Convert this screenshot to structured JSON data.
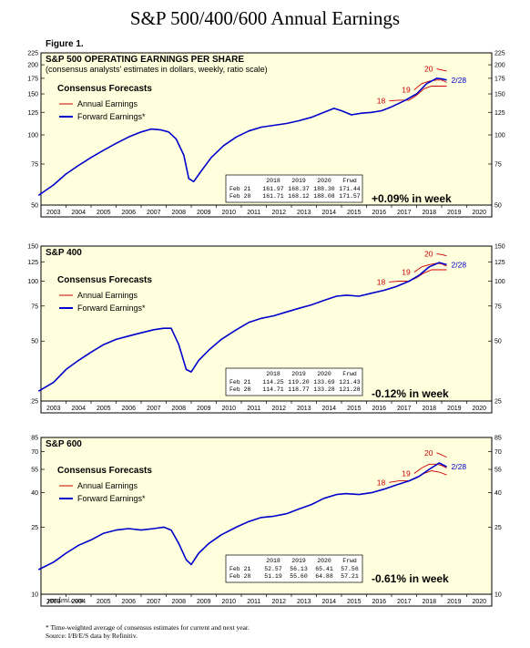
{
  "title": "S&P 500/400/600 Annual Earnings",
  "figure_label": "Figure 1.",
  "footnote": [
    "* Time-weighted average of consensus estimates for current and next year.",
    "Source: I/B/E/S data by Refinitiv."
  ],
  "credit": "yardeni.com",
  "colors": {
    "annual": "#cc0000",
    "forward": "#0000cc",
    "panel_bg": "#ffffdd"
  },
  "legend": {
    "title": "Consensus Forecasts",
    "annual": "Annual Earnings",
    "forward": "Forward Earnings*"
  },
  "chart_data": [
    {
      "type": "line",
      "title": "S&P 500 OPERATING EARNINGS PER SHARE",
      "subtitle": "(consensus analysts' estimates in dollars, weekly, ratio scale)",
      "x_ticks": [
        "2003",
        "2004",
        "2005",
        "2006",
        "2007",
        "2008",
        "2009",
        "2010",
        "2011",
        "2012",
        "2013",
        "2014",
        "2015",
        "2016",
        "2017",
        "2018",
        "2019",
        "2020"
      ],
      "xlim": [
        2003,
        2021
      ],
      "y_scale": "log",
      "ylim": [
        50,
        225
      ],
      "y_ticks": [
        50,
        75,
        100,
        125,
        150,
        175,
        200,
        225
      ],
      "forward_series": {
        "name": "Forward Earnings*",
        "x": [
          2002.9,
          2003.5,
          2004,
          2004.5,
          2005,
          2005.5,
          2006,
          2006.5,
          2007,
          2007.4,
          2007.8,
          2008.1,
          2008.4,
          2008.7,
          2008.9,
          2009.1,
          2009.4,
          2009.8,
          2010.3,
          2010.8,
          2011.3,
          2011.8,
          2012.3,
          2012.8,
          2013.3,
          2013.8,
          2014.3,
          2014.7,
          2015,
          2015.4,
          2015.8,
          2016.2,
          2016.6,
          2017,
          2017.5,
          2018,
          2018.4,
          2018.8,
          2019,
          2019.2
        ],
        "values": [
          55,
          61,
          68,
          74,
          80,
          86,
          92,
          98,
          103,
          106,
          105,
          103,
          96,
          82,
          65,
          63,
          70,
          80,
          90,
          98,
          104,
          108,
          110,
          112,
          115,
          119,
          125,
          130,
          127,
          122,
          124,
          125,
          127,
          132,
          140,
          150,
          166,
          175,
          174,
          172
        ]
      },
      "annual_labels": [
        "18",
        "19",
        "20"
      ],
      "end_label": "2/28",
      "annual_series": [
        {
          "name": "18",
          "x": [
            2016.9,
            2017.3,
            2017.7,
            2018,
            2018.3,
            2018.6,
            2018.9,
            2019.2
          ],
          "values": [
            140,
            141,
            141,
            148,
            158,
            162,
            162,
            162
          ]
        },
        {
          "name": "19",
          "x": [
            2017.9,
            2018.2,
            2018.5,
            2018.8,
            2019,
            2019.2
          ],
          "values": [
            156,
            166,
            170,
            172,
            172,
            168
          ]
        },
        {
          "name": "20",
          "x": [
            2018.8,
            2019,
            2019.2
          ],
          "values": [
            192,
            190,
            188
          ]
        }
      ],
      "table": {
        "header": [
          "2018",
          "2019",
          "2020",
          "Frwd"
        ],
        "rows": [
          {
            "date": "Feb 21",
            "values": [
              "161.97",
              "168.37",
              "188.30",
              "171.44"
            ]
          },
          {
            "date": "Feb 28",
            "values": [
              "161.71",
              "168.12",
              "188.08",
              "171.57"
            ]
          }
        ]
      },
      "week_change": "+0.09% in week"
    },
    {
      "type": "line",
      "title": "S&P 400",
      "x_ticks": [
        "2003",
        "2004",
        "2005",
        "2006",
        "2007",
        "2008",
        "2009",
        "2010",
        "2011",
        "2012",
        "2013",
        "2014",
        "2015",
        "2016",
        "2017",
        "2018",
        "2019",
        "2020"
      ],
      "xlim": [
        2003,
        2021
      ],
      "y_scale": "log",
      "ylim": [
        25,
        150
      ],
      "y_ticks": [
        25,
        50,
        75,
        100,
        125,
        150
      ],
      "forward_series": {
        "name": "Forward Earnings*",
        "x": [
          2002.9,
          2003.5,
          2004,
          2004.5,
          2005,
          2005.5,
          2006,
          2006.5,
          2007,
          2007.5,
          2007.9,
          2008.2,
          2008.5,
          2008.8,
          2009,
          2009.3,
          2009.7,
          2010.2,
          2010.8,
          2011.3,
          2011.8,
          2012.3,
          2012.8,
          2013.3,
          2013.8,
          2014.3,
          2014.8,
          2015.2,
          2015.7,
          2016.2,
          2016.7,
          2017.2,
          2017.7,
          2018.1,
          2018.5,
          2018.9,
          2019.1,
          2019.2
        ],
        "values": [
          28,
          31,
          36,
          40,
          44,
          48,
          51,
          53,
          55,
          57,
          58,
          58,
          48,
          36,
          35,
          40,
          45,
          51,
          57,
          62,
          65,
          67,
          70,
          73,
          76,
          80,
          84,
          85,
          84,
          87,
          90,
          94,
          100,
          107,
          118,
          124,
          122,
          121
        ]
      },
      "annual_labels": [
        "18",
        "19",
        "20"
      ],
      "end_label": "2/28",
      "annual_series": [
        {
          "name": "18",
          "x": [
            2016.9,
            2017.3,
            2017.7,
            2018,
            2018.3,
            2018.6,
            2018.9,
            2019.2
          ],
          "values": [
            99,
            100,
            100,
            104,
            110,
            114,
            114,
            114
          ]
        },
        {
          "name": "19",
          "x": [
            2017.9,
            2018.2,
            2018.5,
            2018.8,
            2019,
            2019.2
          ],
          "values": [
            111,
            118,
            121,
            123,
            122,
            119
          ]
        },
        {
          "name": "20",
          "x": [
            2018.8,
            2019,
            2019.2
          ],
          "values": [
            137,
            136,
            134
          ]
        }
      ],
      "table": {
        "header": [
          "2018",
          "2019",
          "2020",
          "Frwd"
        ],
        "rows": [
          {
            "date": "Feb 21",
            "values": [
              "114.25",
              "119.20",
              "133.69",
              "121.43"
            ]
          },
          {
            "date": "Feb 28",
            "values": [
              "114.71",
              "118.77",
              "133.28",
              "121.28"
            ]
          }
        ]
      },
      "week_change": "-0.12% in week"
    },
    {
      "type": "line",
      "title": "S&P 600",
      "x_ticks": [
        "2003",
        "2004",
        "2005",
        "2006",
        "2007",
        "2008",
        "2009",
        "2010",
        "2011",
        "2012",
        "2013",
        "2014",
        "2015",
        "2016",
        "2017",
        "2018",
        "2019",
        "2020"
      ],
      "xlim": [
        2003,
        2021
      ],
      "y_scale": "log",
      "ylim": [
        10,
        85
      ],
      "y_ticks": [
        10,
        25,
        40,
        55,
        70,
        85
      ],
      "forward_series": {
        "name": "Forward Earnings*",
        "x": [
          2002.9,
          2003.5,
          2004,
          2004.5,
          2005,
          2005.5,
          2006,
          2006.5,
          2007,
          2007.5,
          2007.9,
          2008.2,
          2008.5,
          2008.8,
          2009,
          2009.3,
          2009.7,
          2010.2,
          2010.8,
          2011.3,
          2011.8,
          2012.3,
          2012.8,
          2013.3,
          2013.8,
          2014.3,
          2014.8,
          2015.2,
          2015.7,
          2016.2,
          2016.7,
          2017.2,
          2017.7,
          2018.1,
          2018.5,
          2018.9,
          2019.1,
          2019.2
        ],
        "values": [
          14,
          15.5,
          17.5,
          19.5,
          21,
          23,
          24,
          24.5,
          24,
          24.5,
          25,
          24,
          20,
          16,
          15,
          17.5,
          20,
          22.5,
          25,
          27,
          28.5,
          29,
          30,
          32,
          34,
          37,
          39,
          39.5,
          39,
          40,
          42,
          44.5,
          47,
          50,
          55,
          60,
          58,
          57
        ]
      },
      "annual_labels": [
        "18",
        "19",
        "20"
      ],
      "end_label": "2/28",
      "annual_series": [
        {
          "name": "18",
          "x": [
            2016.9,
            2017.3,
            2017.7,
            2018,
            2018.3,
            2018.6,
            2018.9,
            2019.2
          ],
          "values": [
            46,
            47,
            47,
            49,
            52,
            54,
            53,
            51
          ]
        },
        {
          "name": "19",
          "x": [
            2017.9,
            2018.2,
            2018.5,
            2018.8,
            2019,
            2019.2
          ],
          "values": [
            52,
            56,
            59,
            59,
            58,
            56
          ]
        },
        {
          "name": "20",
          "x": [
            2018.8,
            2019,
            2019.2
          ],
          "values": [
            69,
            67,
            65
          ]
        }
      ],
      "table": {
        "header": [
          "2018",
          "2019",
          "2020",
          "Frwd"
        ],
        "rows": [
          {
            "date": "Feb 21",
            "values": [
              "52.57",
              "56.13",
              "65.41",
              "57.56"
            ]
          },
          {
            "date": "Feb 28",
            "values": [
              "51.19",
              "55.60",
              "64.88",
              "57.21"
            ]
          }
        ]
      },
      "week_change": "-0.61% in week"
    }
  ]
}
